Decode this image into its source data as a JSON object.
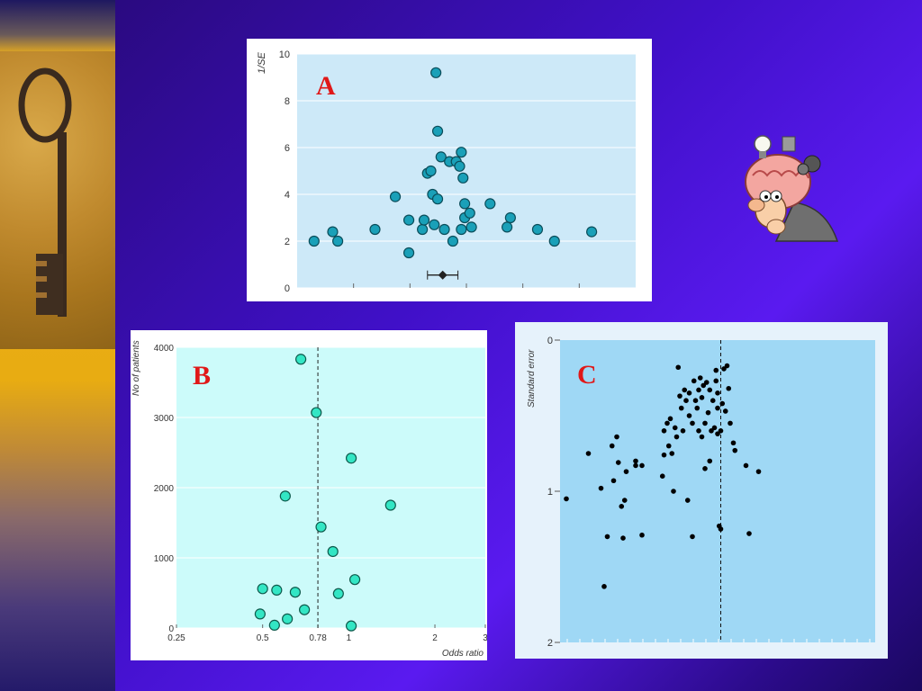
{
  "colors": {
    "accent_letter": "#e01818",
    "plot_a_bg": "#cde9f8",
    "plot_b_bg": "#ccfbfa",
    "plot_c_bg": "#9fd8f5",
    "point_a": "#1aa0b8",
    "point_b": "#33e6c4",
    "point_c": "#000000"
  },
  "icons": {
    "key": "key-photo",
    "thinker": "thinking-man-clipart"
  },
  "chart_data": [
    {
      "id": "A",
      "type": "scatter",
      "letter": "A",
      "ylabel": "1/SE",
      "xlabel": "",
      "ylim": [
        0,
        10
      ],
      "yticks": [
        "0",
        "2",
        "4",
        "6",
        "8",
        "10"
      ],
      "grid": true,
      "points": [
        {
          "x": 0.5,
          "y": 2.0
        },
        {
          "x": 1.05,
          "y": 2.4
        },
        {
          "x": 1.2,
          "y": 2.0
        },
        {
          "x": 2.9,
          "y": 3.9
        },
        {
          "x": 2.3,
          "y": 2.5
        },
        {
          "x": 3.3,
          "y": 1.5
        },
        {
          "x": 3.3,
          "y": 2.9
        },
        {
          "x": 3.7,
          "y": 2.5
        },
        {
          "x": 3.75,
          "y": 2.9
        },
        {
          "x": 3.85,
          "y": 4.9
        },
        {
          "x": 3.95,
          "y": 5.0
        },
        {
          "x": 4.0,
          "y": 4.0
        },
        {
          "x": 4.05,
          "y": 2.7
        },
        {
          "x": 4.1,
          "y": 9.2
        },
        {
          "x": 4.15,
          "y": 3.8
        },
        {
          "x": 4.15,
          "y": 6.7
        },
        {
          "x": 4.25,
          "y": 5.6
        },
        {
          "x": 4.35,
          "y": 2.5
        },
        {
          "x": 4.5,
          "y": 5.4
        },
        {
          "x": 4.6,
          "y": 2.0
        },
        {
          "x": 4.7,
          "y": 5.4
        },
        {
          "x": 4.8,
          "y": 5.2
        },
        {
          "x": 4.85,
          "y": 5.8
        },
        {
          "x": 4.85,
          "y": 2.5
        },
        {
          "x": 4.9,
          "y": 4.7
        },
        {
          "x": 4.95,
          "y": 3.0
        },
        {
          "x": 4.95,
          "y": 3.6
        },
        {
          "x": 5.1,
          "y": 3.2
        },
        {
          "x": 5.15,
          "y": 2.6
        },
        {
          "x": 5.7,
          "y": 3.6
        },
        {
          "x": 6.3,
          "y": 3.0
        },
        {
          "x": 6.2,
          "y": 2.6
        },
        {
          "x": 7.1,
          "y": 2.5
        },
        {
          "x": 7.6,
          "y": 2.0
        },
        {
          "x": 8.7,
          "y": 2.4
        }
      ],
      "summary": {
        "x": 4.3,
        "y": 0.55,
        "ci": [
          3.85,
          4.75
        ]
      }
    },
    {
      "id": "B",
      "type": "scatter",
      "letter": "B",
      "ylabel": "No of patients",
      "xlabel": "Odds ratio",
      "xscale": "log",
      "xlim": [
        0.25,
        3
      ],
      "ylim": [
        0,
        4000
      ],
      "xticks": [
        "0.25",
        "0.5",
        "0.78",
        "1",
        "2",
        "3"
      ],
      "yticks": [
        "0",
        "1000",
        "2000",
        "3000",
        "4000"
      ],
      "reference_line": 0.78,
      "grid": true,
      "points": [
        {
          "x": 0.49,
          "y": 200
        },
        {
          "x": 0.5,
          "y": 560
        },
        {
          "x": 0.55,
          "y": 40
        },
        {
          "x": 0.56,
          "y": 540
        },
        {
          "x": 0.6,
          "y": 1880
        },
        {
          "x": 0.61,
          "y": 130
        },
        {
          "x": 0.65,
          "y": 510
        },
        {
          "x": 0.68,
          "y": 3830
        },
        {
          "x": 0.7,
          "y": 260
        },
        {
          "x": 0.77,
          "y": 3070
        },
        {
          "x": 0.8,
          "y": 1440
        },
        {
          "x": 0.88,
          "y": 1090
        },
        {
          "x": 0.92,
          "y": 490
        },
        {
          "x": 1.02,
          "y": 2420
        },
        {
          "x": 1.02,
          "y": 30
        },
        {
          "x": 1.05,
          "y": 690
        },
        {
          "x": 1.4,
          "y": 1750
        }
      ]
    },
    {
      "id": "C",
      "type": "scatter",
      "letter": "C",
      "ylabel": "Standard error",
      "xlabel": "",
      "ylim": [
        0,
        2
      ],
      "y_inverted": true,
      "yticks": [
        "0",
        "1",
        "2"
      ],
      "xlim": [
        0,
        10
      ],
      "reference_line": 5.1,
      "grid": false,
      "points": [
        {
          "x": 0.2,
          "y": 1.05
        },
        {
          "x": 0.9,
          "y": 0.75
        },
        {
          "x": 1.3,
          "y": 0.98
        },
        {
          "x": 1.5,
          "y": 1.3
        },
        {
          "x": 1.4,
          "y": 1.63
        },
        {
          "x": 1.65,
          "y": 0.7
        },
        {
          "x": 1.7,
          "y": 0.93
        },
        {
          "x": 1.8,
          "y": 0.64
        },
        {
          "x": 1.85,
          "y": 0.81
        },
        {
          "x": 1.95,
          "y": 1.1
        },
        {
          "x": 2.0,
          "y": 1.31
        },
        {
          "x": 2.05,
          "y": 1.06
        },
        {
          "x": 2.1,
          "y": 0.87
        },
        {
          "x": 2.4,
          "y": 0.8
        },
        {
          "x": 2.4,
          "y": 0.83
        },
        {
          "x": 2.6,
          "y": 0.83
        },
        {
          "x": 2.6,
          "y": 1.29
        },
        {
          "x": 3.25,
          "y": 0.9
        },
        {
          "x": 3.3,
          "y": 0.76
        },
        {
          "x": 3.3,
          "y": 0.6
        },
        {
          "x": 3.4,
          "y": 0.55
        },
        {
          "x": 3.45,
          "y": 0.7
        },
        {
          "x": 3.5,
          "y": 0.52
        },
        {
          "x": 3.55,
          "y": 0.75
        },
        {
          "x": 3.6,
          "y": 1.0
        },
        {
          "x": 3.65,
          "y": 0.58
        },
        {
          "x": 3.7,
          "y": 0.64
        },
        {
          "x": 3.75,
          "y": 0.18
        },
        {
          "x": 3.8,
          "y": 0.37
        },
        {
          "x": 3.85,
          "y": 0.45
        },
        {
          "x": 3.9,
          "y": 0.6
        },
        {
          "x": 3.95,
          "y": 0.33
        },
        {
          "x": 4.0,
          "y": 0.4
        },
        {
          "x": 4.05,
          "y": 1.06
        },
        {
          "x": 4.1,
          "y": 0.5
        },
        {
          "x": 4.1,
          "y": 0.35
        },
        {
          "x": 4.2,
          "y": 0.55
        },
        {
          "x": 4.2,
          "y": 1.3
        },
        {
          "x": 4.25,
          "y": 0.27
        },
        {
          "x": 4.3,
          "y": 0.4
        },
        {
          "x": 4.35,
          "y": 0.45
        },
        {
          "x": 4.4,
          "y": 0.33
        },
        {
          "x": 4.4,
          "y": 0.6
        },
        {
          "x": 4.45,
          "y": 0.25
        },
        {
          "x": 4.5,
          "y": 0.38
        },
        {
          "x": 4.5,
          "y": 0.64
        },
        {
          "x": 4.55,
          "y": 0.3
        },
        {
          "x": 4.6,
          "y": 0.85
        },
        {
          "x": 4.6,
          "y": 0.55
        },
        {
          "x": 4.65,
          "y": 0.28
        },
        {
          "x": 4.7,
          "y": 0.48
        },
        {
          "x": 4.75,
          "y": 0.33
        },
        {
          "x": 4.75,
          "y": 0.8
        },
        {
          "x": 4.8,
          "y": 0.6
        },
        {
          "x": 4.85,
          "y": 0.4
        },
        {
          "x": 4.9,
          "y": 0.58
        },
        {
          "x": 4.95,
          "y": 0.2
        },
        {
          "x": 4.95,
          "y": 0.27
        },
        {
          "x": 5.0,
          "y": 0.35
        },
        {
          "x": 5.0,
          "y": 0.45
        },
        {
          "x": 5.0,
          "y": 0.62
        },
        {
          "x": 5.05,
          "y": 1.23
        },
        {
          "x": 5.1,
          "y": 1.25
        },
        {
          "x": 5.1,
          "y": 0.6
        },
        {
          "x": 5.15,
          "y": 0.42
        },
        {
          "x": 5.2,
          "y": 0.19
        },
        {
          "x": 5.25,
          "y": 0.47
        },
        {
          "x": 5.3,
          "y": 0.17
        },
        {
          "x": 5.35,
          "y": 0.32
        },
        {
          "x": 5.4,
          "y": 0.55
        },
        {
          "x": 5.5,
          "y": 0.68
        },
        {
          "x": 5.55,
          "y": 0.73
        },
        {
          "x": 5.9,
          "y": 0.83
        },
        {
          "x": 6.0,
          "y": 1.28
        },
        {
          "x": 6.3,
          "y": 0.87
        }
      ]
    }
  ]
}
